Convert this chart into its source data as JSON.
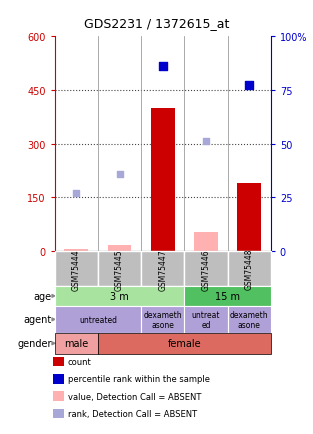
{
  "title": "GDS2231 / 1372615_at",
  "samples": [
    "GSM75444",
    "GSM75445",
    "GSM75447",
    "GSM75446",
    "GSM75448"
  ],
  "count_values": [
    0,
    0,
    400,
    0,
    190
  ],
  "count_absent_values": [
    7,
    18,
    0,
    55,
    0
  ],
  "percentile_rank_values": [
    null,
    null,
    86,
    null,
    77
  ],
  "rank_absent_values": [
    27,
    36,
    null,
    51,
    null
  ],
  "ylim_left": [
    0,
    600
  ],
  "ylim_right": [
    0,
    100
  ],
  "yticks_left": [
    0,
    150,
    300,
    450,
    600
  ],
  "yticks_right": [
    0,
    25,
    50,
    75,
    100
  ],
  "left_tick_labels": [
    "0",
    "150",
    "300",
    "450",
    "600"
  ],
  "right_tick_labels": [
    "0",
    "25",
    "50",
    "75",
    "100%"
  ],
  "age_groups": [
    {
      "label": "3 m",
      "start": 0,
      "end": 3,
      "color": "#A8E4A0"
    },
    {
      "label": "15 m",
      "start": 3,
      "end": 5,
      "color": "#50C060"
    }
  ],
  "agent_groups": [
    {
      "label": "untreated",
      "start": 0,
      "end": 2
    },
    {
      "label": "dexameth\nasone",
      "start": 2,
      "end": 3
    },
    {
      "label": "untreat\ned",
      "start": 3,
      "end": 4
    },
    {
      "label": "dexameth\nasone",
      "start": 4,
      "end": 5
    }
  ],
  "gender_groups": [
    {
      "label": "male",
      "start": 0,
      "end": 1,
      "color": "#F0A0A0"
    },
    {
      "label": "female",
      "start": 1,
      "end": 5,
      "color": "#DC6A60"
    }
  ],
  "sample_box_color": "#BEBEBE",
  "bar_width": 0.55,
  "count_color": "#CC0000",
  "count_absent_color": "#FFB0B0",
  "percentile_color": "#0000CC",
  "rank_absent_color": "#A8A8D8",
  "agent_color": "#B0A0D8",
  "bg_color": "#FFFFFF",
  "plot_bg_color": "#FFFFFF",
  "legend_items": [
    {
      "color": "#CC0000",
      "label": "count"
    },
    {
      "color": "#0000CC",
      "label": "percentile rank within the sample"
    },
    {
      "color": "#FFB0B0",
      "label": "value, Detection Call = ABSENT"
    },
    {
      "color": "#A8A8D8",
      "label": "rank, Detection Call = ABSENT"
    }
  ],
  "row_labels": [
    "age",
    "agent",
    "gender"
  ],
  "dotted_line_color": "#444444"
}
